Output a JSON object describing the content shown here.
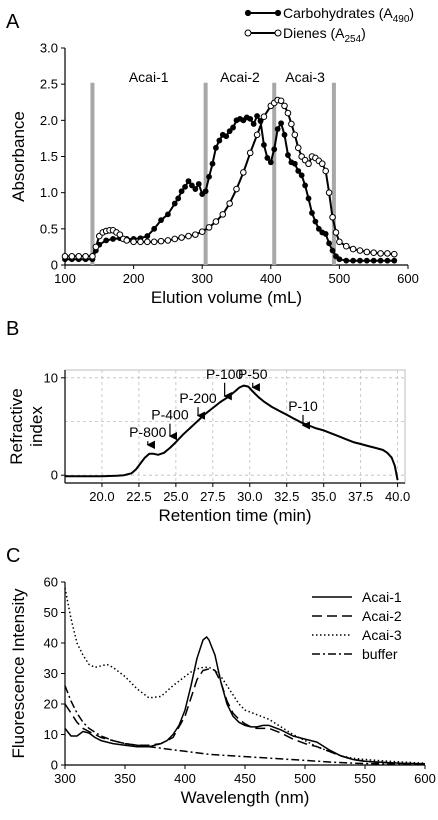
{
  "chart_data": [
    {
      "panel": "A",
      "type": "line",
      "xlabel": "Elution volume (mL)",
      "ylabel": "Absorbance",
      "xlim": [
        100,
        600
      ],
      "ylim": [
        0,
        3.0
      ],
      "xticks": [
        100,
        200,
        300,
        400,
        500,
        600
      ],
      "yticks": [
        0,
        0.5,
        1.0,
        1.5,
        2.0,
        2.5,
        3.0
      ],
      "ytick_labels": [
        "0",
        "0.5",
        "1.0",
        "1.5",
        "2.0",
        "2.5",
        "3.0"
      ],
      "grid": false,
      "legend_position": "top-right",
      "separators": [
        140,
        305,
        405,
        492
      ],
      "fraction_labels": [
        {
          "text": "Acai-1",
          "x": 222,
          "y": 2.6
        },
        {
          "text": "Acai-2",
          "x": 355,
          "y": 2.6
        },
        {
          "text": "Acai-3",
          "x": 450,
          "y": 2.6
        }
      ],
      "series": [
        {
          "name": "Carbohydrates (A",
          "name_sub": "490",
          "name_end": ")",
          "marker": "filled",
          "x": [
            100,
            110,
            120,
            130,
            140,
            145,
            150,
            160,
            170,
            180,
            190,
            200,
            210,
            220,
            230,
            240,
            250,
            260,
            265,
            270,
            275,
            280,
            285,
            290,
            295,
            300,
            305,
            310,
            315,
            320,
            325,
            330,
            335,
            340,
            345,
            350,
            355,
            360,
            365,
            370,
            375,
            380,
            385,
            390,
            395,
            400,
            405,
            410,
            415,
            420,
            425,
            430,
            435,
            440,
            445,
            450,
            455,
            460,
            465,
            470,
            475,
            480,
            485,
            490,
            495,
            500,
            510,
            520,
            530,
            540,
            550,
            560,
            570,
            580
          ],
          "y": [
            0.08,
            0.08,
            0.08,
            0.08,
            0.08,
            0.2,
            0.28,
            0.34,
            0.36,
            0.37,
            0.36,
            0.36,
            0.37,
            0.4,
            0.5,
            0.62,
            0.7,
            0.85,
            0.92,
            1.02,
            1.08,
            1.16,
            1.1,
            1.05,
            1.12,
            0.98,
            1.02,
            1.22,
            1.4,
            1.62,
            1.72,
            1.8,
            1.78,
            1.85,
            1.9,
            2.0,
            2.02,
            2.0,
            2.04,
            2.02,
            1.95,
            2.06,
            1.99,
            1.66,
            1.48,
            1.42,
            1.6,
            1.88,
            1.96,
            1.8,
            1.52,
            1.42,
            1.4,
            1.3,
            1.24,
            1.1,
            0.92,
            0.72,
            0.6,
            0.5,
            0.45,
            0.43,
            0.3,
            0.2,
            0.12,
            0.08,
            0.06,
            0.06,
            0.06,
            0.06,
            0.06,
            0.06,
            0.06,
            0.06
          ]
        },
        {
          "name": "Dienes (A",
          "name_sub": "254",
          "name_end": ")",
          "marker": "hollow",
          "x": [
            100,
            110,
            120,
            130,
            140,
            145,
            150,
            155,
            160,
            165,
            170,
            175,
            180,
            185,
            190,
            200,
            210,
            220,
            230,
            240,
            250,
            260,
            270,
            280,
            290,
            300,
            310,
            320,
            330,
            340,
            350,
            360,
            370,
            380,
            390,
            400,
            405,
            410,
            415,
            420,
            425,
            430,
            435,
            440,
            445,
            450,
            455,
            460,
            465,
            470,
            475,
            480,
            485,
            490,
            495,
            500,
            510,
            520,
            530,
            540,
            550,
            560,
            570,
            580
          ],
          "y": [
            0.12,
            0.12,
            0.12,
            0.12,
            0.12,
            0.25,
            0.4,
            0.45,
            0.47,
            0.48,
            0.48,
            0.45,
            0.42,
            0.36,
            0.34,
            0.32,
            0.32,
            0.32,
            0.32,
            0.33,
            0.34,
            0.36,
            0.38,
            0.4,
            0.42,
            0.46,
            0.52,
            0.6,
            0.7,
            0.85,
            1.05,
            1.28,
            1.55,
            1.8,
            2.05,
            2.2,
            2.24,
            2.28,
            2.27,
            2.2,
            2.1,
            1.95,
            1.8,
            1.62,
            1.5,
            1.45,
            1.4,
            1.5,
            1.48,
            1.44,
            1.4,
            1.3,
            1.0,
            0.66,
            0.45,
            0.32,
            0.26,
            0.22,
            0.2,
            0.18,
            0.17,
            0.16,
            0.16,
            0.15
          ]
        }
      ]
    },
    {
      "panel": "B",
      "type": "line",
      "xlabel": "Retention time (min)",
      "ylabel_lines": [
        "Refractive",
        "index"
      ],
      "xlim": [
        17.5,
        40.5
      ],
      "ylim": [
        -0.8,
        10.8
      ],
      "xticks": [
        20,
        22.5,
        25,
        27.5,
        30,
        32.5,
        35,
        37.5,
        40
      ],
      "xtick_labels": [
        "20.0",
        "22.5",
        "25.0",
        "27.5",
        "30.0",
        "32.5",
        "35.0",
        "37.5",
        "40.0"
      ],
      "yticks": [
        0,
        10
      ],
      "ytick_labels": [
        "0",
        "10"
      ],
      "grid": true,
      "series": [
        {
          "x": [
            17.5,
            18,
            19,
            20,
            21,
            21.5,
            22,
            22.3,
            22.6,
            22.9,
            23.2,
            23.5,
            23.8,
            24.2,
            24.6,
            25,
            25.5,
            26,
            26.5,
            27,
            27.5,
            28,
            28.5,
            29,
            29.3,
            29.6,
            29.9,
            30.2,
            30.6,
            31,
            31.5,
            32,
            32.5,
            33,
            33.5,
            34,
            34.5,
            35,
            35.5,
            36,
            36.5,
            37,
            37.5,
            38,
            38.5,
            39,
            39.3,
            39.6,
            39.8,
            39.9,
            40
          ],
          "y": [
            -0.1,
            -0.1,
            -0.1,
            -0.1,
            -0.05,
            0,
            0.2,
            0.6,
            1.2,
            1.8,
            2.2,
            2.2,
            2.1,
            2.3,
            2.8,
            3.4,
            4.2,
            4.9,
            5.6,
            6.3,
            6.9,
            7.5,
            8.0,
            8.6,
            9.0,
            9.2,
            9.1,
            8.6,
            8.0,
            7.5,
            7.0,
            6.6,
            6.2,
            5.8,
            5.4,
            5.1,
            4.8,
            4.6,
            4.3,
            4.0,
            3.7,
            3.4,
            3.2,
            3.0,
            2.8,
            2.6,
            2.3,
            1.8,
            1.0,
            0.3,
            -0.5
          ]
        }
      ],
      "annotations": [
        {
          "text": "P-800",
          "x": 23.1,
          "label_y": 3.9,
          "arrow_to": 2.5
        },
        {
          "text": "P-400",
          "x": 24.6,
          "label_y": 5.7,
          "arrow_to": 3.4
        },
        {
          "text": "P-200",
          "x": 26.5,
          "label_y": 7.4,
          "arrow_to": 5.5
        },
        {
          "text": "P-100",
          "x": 28.3,
          "label_y": 9.9,
          "arrow_to": 7.5
        },
        {
          "text": "P-50",
          "x": 30.2,
          "label_y": 9.9,
          "arrow_to": 8.4
        },
        {
          "text": "P-10",
          "x": 33.6,
          "label_y": 6.6,
          "arrow_to": 4.5
        }
      ]
    },
    {
      "panel": "C",
      "type": "line",
      "xlabel": "Wavelength (nm)",
      "ylabel": "Fluorescence Intensity",
      "xlim": [
        300,
        600
      ],
      "ylim": [
        0,
        60
      ],
      "xticks": [
        300,
        350,
        400,
        450,
        500,
        550,
        600
      ],
      "yticks": [
        0,
        10,
        20,
        30,
        40,
        50,
        60
      ],
      "grid": false,
      "legend_position": "top-right",
      "series": [
        {
          "name": "Acai-1",
          "dash": "solid",
          "x": [
            300,
            305,
            310,
            315,
            320,
            325,
            330,
            340,
            350,
            360,
            370,
            380,
            385,
            390,
            395,
            400,
            405,
            410,
            415,
            418,
            420,
            425,
            430,
            435,
            440,
            445,
            450,
            455,
            460,
            465,
            470,
            480,
            490,
            500,
            510,
            520,
            530,
            540,
            550,
            560,
            570,
            580,
            590,
            600
          ],
          "y": [
            12,
            9.5,
            9.5,
            11,
            10.5,
            9,
            8,
            7,
            6.5,
            6,
            6,
            7,
            8,
            10,
            13,
            18,
            26,
            35,
            41,
            42,
            41,
            36,
            27,
            20,
            16,
            14,
            13,
            12.5,
            12.5,
            13,
            13,
            11.5,
            9.5,
            8.5,
            7.5,
            5,
            3,
            1.8,
            1.2,
            1,
            0.8,
            0.6,
            0.5,
            0.4
          ]
        },
        {
          "name": "Acai-2",
          "dash": "dash",
          "x": [
            300,
            305,
            310,
            315,
            320,
            330,
            340,
            350,
            360,
            370,
            380,
            390,
            400,
            405,
            410,
            415,
            420,
            425,
            430,
            435,
            440,
            445,
            450,
            455,
            460,
            470,
            480,
            490,
            500,
            510,
            520,
            530,
            540,
            550,
            560,
            570,
            580,
            590,
            600
          ],
          "y": [
            20,
            17,
            14,
            12,
            11,
            9,
            8,
            7,
            6.5,
            6.5,
            7,
            9,
            16,
            22,
            28,
            31,
            31.5,
            31,
            27,
            21,
            17,
            15,
            13.5,
            12.5,
            12,
            12,
            10.5,
            8.5,
            7,
            6,
            4.5,
            3,
            1.8,
            1.2,
            0.9,
            0.7,
            0.5,
            0.4,
            0.3
          ]
        },
        {
          "name": "Acai-3",
          "dash": "dot",
          "x": [
            300,
            305,
            310,
            315,
            320,
            325,
            330,
            335,
            340,
            350,
            360,
            370,
            380,
            390,
            400,
            405,
            410,
            415,
            420,
            425,
            430,
            435,
            440,
            445,
            450,
            460,
            470,
            480,
            490,
            500,
            510,
            520,
            530,
            540,
            550,
            560,
            570,
            580,
            590,
            600
          ],
          "y": [
            58,
            48,
            40,
            36,
            33,
            32,
            32.5,
            33,
            32,
            29,
            25,
            22,
            22.5,
            26,
            29,
            30.5,
            31.5,
            32,
            32,
            31,
            29,
            26,
            23,
            20,
            18,
            16.5,
            15,
            12.5,
            10,
            8,
            6,
            4.5,
            3,
            2.2,
            1.8,
            1.5,
            1.2,
            1,
            0.8,
            0.6
          ]
        },
        {
          "name": "buffer",
          "dash": "dashdot",
          "x": [
            300,
            305,
            310,
            315,
            320,
            330,
            340,
            350,
            360,
            370,
            380,
            390,
            400,
            420,
            440,
            460,
            480,
            500,
            520,
            540,
            560,
            580,
            600
          ],
          "y": [
            26,
            21,
            17,
            14,
            12,
            9.5,
            8,
            7,
            6.5,
            6,
            5.5,
            5,
            4.5,
            3.5,
            3,
            2.5,
            2,
            1.5,
            1,
            0.6,
            0.4,
            0.3,
            0.2
          ]
        }
      ]
    }
  ]
}
